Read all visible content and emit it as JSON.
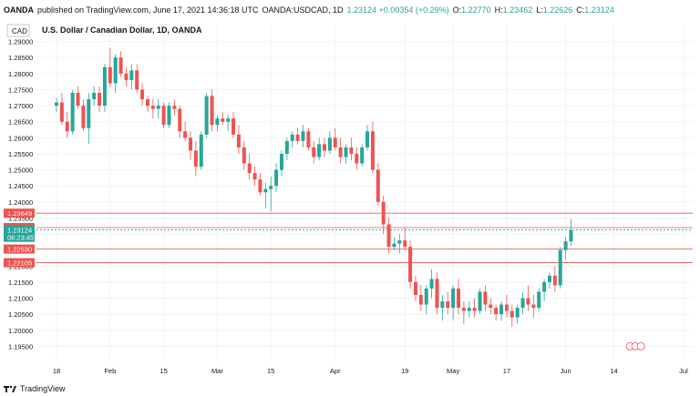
{
  "header": {
    "publisher": "OANDA",
    "published_text": "published on TradingView.com, June 17, 2021 14:36:18 UTC",
    "symbol": "OANDA:USDCAD, 1D",
    "change": "1.23124 +0.00354 (+0.29%)",
    "o_label": "O:",
    "o_value": "1.22770",
    "h_label": "H:",
    "h_value": "1.23462",
    "l_label": "L:",
    "l_value": "1.22626",
    "c_label": "C:",
    "c_value": "1.23124"
  },
  "footer": {
    "brand": "TradingView"
  },
  "colors": {
    "up": "#26a69a",
    "down": "#ef5350",
    "grid": "#f0f3fa",
    "axis_text": "#131722",
    "level_line": "#ef5350"
  },
  "chart_data": {
    "type": "candlestick",
    "title": "U.S. Dollar / Canadian Dollar, 1D, OANDA",
    "currency": "CAD",
    "ylim": [
      1.19,
      1.295
    ],
    "y_ticks": [
      "1.29000",
      "1.28500",
      "1.28000",
      "1.27500",
      "1.27000",
      "1.26500",
      "1.26000",
      "1.25500",
      "1.25000",
      "1.24500",
      "1.24000",
      "1.23500",
      "1.23000",
      "1.22500",
      "1.22000",
      "1.21500",
      "1.21000",
      "1.20500",
      "1.20000",
      "1.19500"
    ],
    "x_ticks": [
      {
        "label": "18",
        "index": 0
      },
      {
        "label": "Feb",
        "index": 10
      },
      {
        "label": "15",
        "index": 20
      },
      {
        "label": "Mar",
        "index": 30
      },
      {
        "label": "15",
        "index": 40
      },
      {
        "label": "Apr",
        "index": 52
      },
      {
        "label": "19",
        "index": 65
      },
      {
        "label": "May",
        "index": 74
      },
      {
        "label": "17",
        "index": 84
      },
      {
        "label": "Jun",
        "index": 95
      },
      {
        "label": "14",
        "index": 104
      },
      {
        "label": "Jul",
        "index": 117
      }
    ],
    "levels": [
      {
        "value": 1.23649,
        "label": "1.23649"
      },
      {
        "value": 1.23201,
        "label": "1.23201"
      },
      {
        "value": 1.2253,
        "label": "1.22530"
      },
      {
        "value": 1.22105,
        "label": "1.22105"
      }
    ],
    "last_price": {
      "value": 1.23124,
      "label": "1.23124",
      "countdown": "06:23:45"
    },
    "candles": [
      [
        1.27,
        1.2725,
        1.268,
        1.271
      ],
      [
        1.271,
        1.274,
        1.264,
        1.265
      ],
      [
        1.265,
        1.268,
        1.26,
        1.262
      ],
      [
        1.262,
        1.275,
        1.261,
        1.274
      ],
      [
        1.274,
        1.276,
        1.269,
        1.27
      ],
      [
        1.27,
        1.272,
        1.262,
        1.263
      ],
      [
        1.263,
        1.274,
        1.258,
        1.272
      ],
      [
        1.272,
        1.276,
        1.27,
        1.274
      ],
      [
        1.274,
        1.276,
        1.268,
        1.27
      ],
      [
        1.27,
        1.283,
        1.268,
        1.282
      ],
      [
        1.282,
        1.288,
        1.276,
        1.277
      ],
      [
        1.277,
        1.286,
        1.274,
        1.285
      ],
      [
        1.285,
        1.287,
        1.279,
        1.28
      ],
      [
        1.28,
        1.282,
        1.276,
        1.278
      ],
      [
        1.278,
        1.283,
        1.275,
        1.281
      ],
      [
        1.281,
        1.283,
        1.274,
        1.275
      ],
      [
        1.275,
        1.277,
        1.27,
        1.272
      ],
      [
        1.272,
        1.273,
        1.268,
        1.27
      ],
      [
        1.27,
        1.272,
        1.266,
        1.269
      ],
      [
        1.269,
        1.272,
        1.266,
        1.27
      ],
      [
        1.27,
        1.271,
        1.263,
        1.264
      ],
      [
        1.264,
        1.271,
        1.263,
        1.27
      ],
      [
        1.27,
        1.272,
        1.267,
        1.269
      ],
      [
        1.269,
        1.27,
        1.26,
        1.262
      ],
      [
        1.262,
        1.265,
        1.259,
        1.26
      ],
      [
        1.26,
        1.262,
        1.253,
        1.256
      ],
      [
        1.256,
        1.259,
        1.248,
        1.251
      ],
      [
        1.251,
        1.262,
        1.25,
        1.261
      ],
      [
        1.261,
        1.274,
        1.26,
        1.273
      ],
      [
        1.273,
        1.275,
        1.262,
        1.264
      ],
      [
        1.264,
        1.267,
        1.262,
        1.266
      ],
      [
        1.266,
        1.268,
        1.264,
        1.265
      ],
      [
        1.265,
        1.267,
        1.262,
        1.266
      ],
      [
        1.266,
        1.268,
        1.26,
        1.261
      ],
      [
        1.261,
        1.264,
        1.255,
        1.257
      ],
      [
        1.257,
        1.259,
        1.25,
        1.252
      ],
      [
        1.252,
        1.255,
        1.247,
        1.249
      ],
      [
        1.249,
        1.251,
        1.245,
        1.247
      ],
      [
        1.247,
        1.249,
        1.242,
        1.243
      ],
      [
        1.243,
        1.246,
        1.238,
        1.244
      ],
      [
        1.244,
        1.248,
        1.237,
        1.245
      ],
      [
        1.245,
        1.252,
        1.243,
        1.25
      ],
      [
        1.25,
        1.256,
        1.248,
        1.255
      ],
      [
        1.255,
        1.26,
        1.253,
        1.259
      ],
      [
        1.259,
        1.262,
        1.257,
        1.261
      ],
      [
        1.261,
        1.263,
        1.258,
        1.259
      ],
      [
        1.259,
        1.264,
        1.257,
        1.262
      ],
      [
        1.262,
        1.263,
        1.256,
        1.257
      ],
      [
        1.257,
        1.259,
        1.252,
        1.254
      ],
      [
        1.254,
        1.26,
        1.253,
        1.258
      ],
      [
        1.258,
        1.26,
        1.254,
        1.256
      ],
      [
        1.256,
        1.262,
        1.255,
        1.26
      ],
      [
        1.26,
        1.263,
        1.256,
        1.257
      ],
      [
        1.257,
        1.26,
        1.252,
        1.254
      ],
      [
        1.254,
        1.258,
        1.252,
        1.257
      ],
      [
        1.257,
        1.26,
        1.253,
        1.255
      ],
      [
        1.255,
        1.257,
        1.25,
        1.252
      ],
      [
        1.252,
        1.258,
        1.251,
        1.257
      ],
      [
        1.257,
        1.264,
        1.256,
        1.262
      ],
      [
        1.262,
        1.265,
        1.249,
        1.25
      ],
      [
        1.25,
        1.252,
        1.239,
        1.24
      ],
      [
        1.24,
        1.242,
        1.23,
        1.233
      ],
      [
        1.233,
        1.235,
        1.224,
        1.226
      ],
      [
        1.226,
        1.229,
        1.225,
        1.227
      ],
      [
        1.227,
        1.23,
        1.224,
        1.228
      ],
      [
        1.228,
        1.232,
        1.225,
        1.226
      ],
      [
        1.226,
        1.228,
        1.213,
        1.215
      ],
      [
        1.215,
        1.217,
        1.209,
        1.211
      ],
      [
        1.211,
        1.214,
        1.206,
        1.208
      ],
      [
        1.208,
        1.214,
        1.205,
        1.213
      ],
      [
        1.213,
        1.219,
        1.21,
        1.216
      ],
      [
        1.216,
        1.218,
        1.205,
        1.207
      ],
      [
        1.207,
        1.211,
        1.203,
        1.209
      ],
      [
        1.209,
        1.212,
        1.205,
        1.207
      ],
      [
        1.207,
        1.214,
        1.203,
        1.213
      ],
      [
        1.213,
        1.216,
        1.205,
        1.207
      ],
      [
        1.207,
        1.209,
        1.202,
        1.206
      ],
      [
        1.206,
        1.209,
        1.204,
        1.207
      ],
      [
        1.207,
        1.21,
        1.204,
        1.206
      ],
      [
        1.206,
        1.213,
        1.205,
        1.212
      ],
      [
        1.212,
        1.214,
        1.206,
        1.208
      ],
      [
        1.208,
        1.21,
        1.205,
        1.207
      ],
      [
        1.207,
        1.208,
        1.203,
        1.205
      ],
      [
        1.205,
        1.209,
        1.203,
        1.208
      ],
      [
        1.208,
        1.211,
        1.204,
        1.206
      ],
      [
        1.206,
        1.208,
        1.201,
        1.204
      ],
      [
        1.204,
        1.208,
        1.202,
        1.207
      ],
      [
        1.207,
        1.212,
        1.205,
        1.21
      ],
      [
        1.21,
        1.214,
        1.206,
        1.208
      ],
      [
        1.208,
        1.211,
        1.204,
        1.207
      ],
      [
        1.207,
        1.213,
        1.206,
        1.212
      ],
      [
        1.212,
        1.216,
        1.209,
        1.215
      ],
      [
        1.215,
        1.218,
        1.213,
        1.217
      ],
      [
        1.217,
        1.22,
        1.212,
        1.214
      ],
      [
        1.214,
        1.226,
        1.213,
        1.225
      ],
      [
        1.225,
        1.229,
        1.222,
        1.2277
      ],
      [
        1.2277,
        1.2346,
        1.2263,
        1.2312
      ]
    ]
  }
}
